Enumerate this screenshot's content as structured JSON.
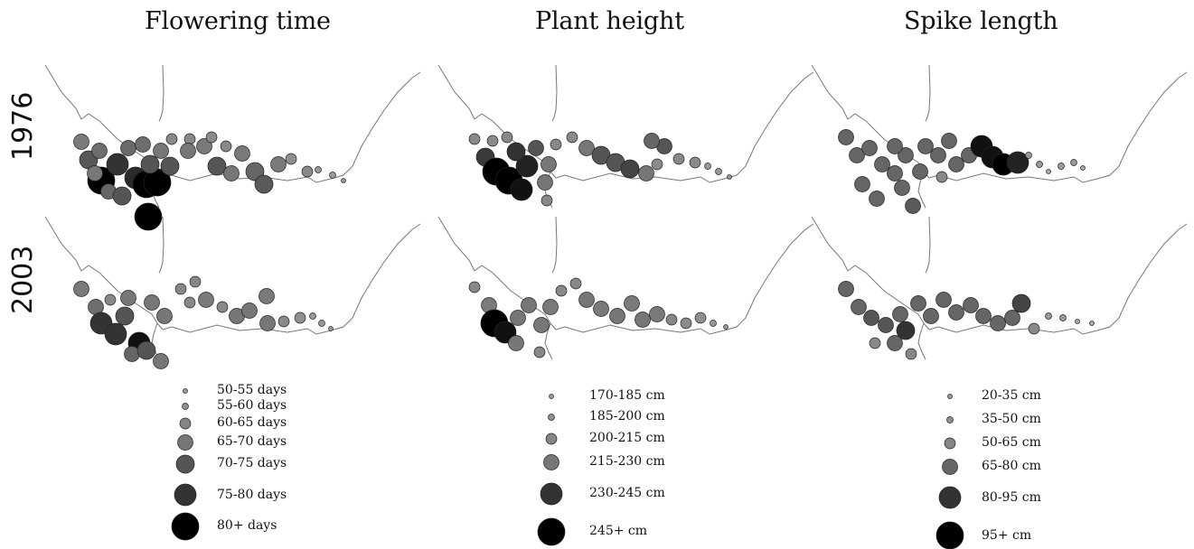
{
  "columns": [
    {
      "title": "Flowering time"
    },
    {
      "title": "Plant height"
    },
    {
      "title": "Spike length"
    }
  ],
  "rows": [
    {
      "label": "1976"
    },
    {
      "label": "2003"
    }
  ],
  "legends": [
    {
      "name": "flowering",
      "items": [
        {
          "label": "50-55 days",
          "size_class": 1,
          "color": "#9a9a9a"
        },
        {
          "label": "55-60 days",
          "size_class": 2,
          "color": "#8f8f8f"
        },
        {
          "label": "60-65 days",
          "size_class": 3,
          "color": "#858585"
        },
        {
          "label": "65-70 days",
          "size_class": 4,
          "color": "#777777"
        },
        {
          "label": "70-75 days",
          "size_class": 5,
          "color": "#555555"
        },
        {
          "label": "75-80 days",
          "size_class": 6,
          "color": "#333333"
        },
        {
          "label": "80+ days",
          "size_class": 7,
          "color": "#000000"
        }
      ]
    },
    {
      "name": "height",
      "items": [
        {
          "label": "170-185 cm",
          "size_class": 1,
          "color": "#9a9a9a"
        },
        {
          "label": "185-200 cm",
          "size_class": 2,
          "color": "#8f8f8f"
        },
        {
          "label": "200-215 cm",
          "size_class": 3,
          "color": "#858585"
        },
        {
          "label": "215-230 cm",
          "size_class": 4,
          "color": "#777777"
        },
        {
          "label": "230-245 cm",
          "size_class": 6,
          "color": "#333333"
        },
        {
          "label": "245+ cm",
          "size_class": 7,
          "color": "#000000"
        }
      ]
    },
    {
      "name": "spike",
      "items": [
        {
          "label": "20-35 cm",
          "size_class": 1,
          "color": "#9a9a9a"
        },
        {
          "label": "35-50 cm",
          "size_class": 2,
          "color": "#8f8f8f"
        },
        {
          "label": "50-65 cm",
          "size_class": 3,
          "color": "#858585"
        },
        {
          "label": "65-80 cm",
          "size_class": 4,
          "color": "#666666"
        },
        {
          "label": "80-95 cm",
          "size_class": 6,
          "color": "#333333"
        },
        {
          "label": "95+ cm",
          "size_class": 7,
          "color": "#000000"
        }
      ]
    }
  ],
  "colors": {
    "background": "#ffffff",
    "outline": "#222222",
    "coastline": "#777777"
  }
}
